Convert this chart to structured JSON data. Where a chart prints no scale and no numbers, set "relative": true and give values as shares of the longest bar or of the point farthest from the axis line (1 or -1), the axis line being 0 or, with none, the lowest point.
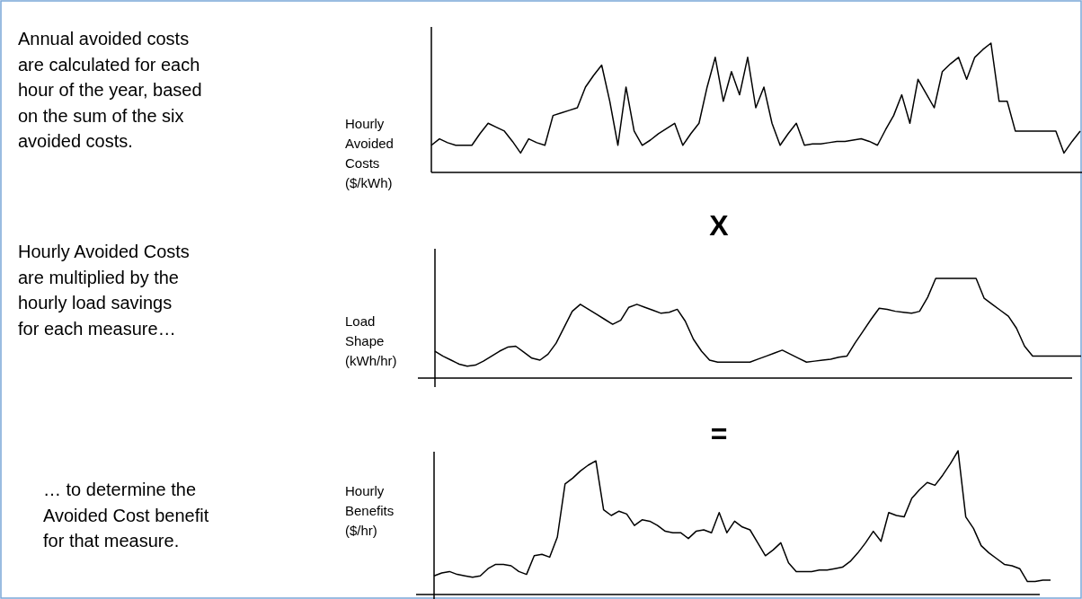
{
  "chart_data": [
    {
      "type": "other",
      "annotations": [
        "Annual avoided costs\nare calculated for each\nhour of the year, based\non the sum of the six\navoided costs.",
        "X",
        "Hourly Avoided Costs\nare multiplied by the\nhourly load savings\nfor each measure…",
        "=",
        "… to determine the\nAvoided Cost benefit\nfor that measure."
      ]
    },
    {
      "type": "line",
      "relative": true,
      "ylabel": "Hourly\nAvoided\nCosts\n($/kWh)",
      "color": "#000000",
      "categories": [
        null,
        null,
        null,
        null,
        null,
        null,
        null,
        null,
        null,
        null,
        null,
        null,
        null,
        null,
        null,
        null,
        null,
        null,
        null,
        null,
        null,
        null,
        null,
        null,
        null,
        null,
        null,
        null,
        null,
        null,
        null,
        null,
        null,
        null,
        null,
        null,
        null,
        null,
        null,
        null,
        null,
        null,
        null,
        null,
        null,
        null,
        null,
        null,
        null,
        null,
        null,
        null,
        null,
        null,
        null,
        null,
        null,
        null,
        null,
        null,
        null,
        null,
        null,
        null,
        null,
        null,
        null,
        null,
        null,
        null,
        null,
        null,
        null,
        null,
        null,
        null,
        null,
        null,
        null,
        null,
        null
      ],
      "values": [
        0.21,
        0.26,
        0.23,
        0.21,
        0.21,
        0.21,
        0.3,
        0.38,
        0.35,
        0.32,
        0.24,
        0.15,
        0.26,
        0.23,
        0.21,
        0.44,
        0.46,
        0.48,
        0.5,
        0.66,
        0.75,
        0.83,
        0.55,
        0.21,
        0.66,
        0.32,
        0.21,
        0.25,
        0.3,
        0.34,
        0.38,
        0.21,
        0.3,
        0.38,
        0.66,
        0.89,
        0.55,
        0.78,
        0.6,
        0.89,
        0.5,
        0.66,
        0.38,
        0.21,
        0.3,
        0.38,
        0.21,
        0.22,
        0.22,
        0.23,
        0.24,
        0.24,
        0.25,
        0.26,
        0.24,
        0.21,
        0.33,
        0.44,
        0.6,
        0.38,
        0.72,
        0.61,
        0.5,
        0.78,
        0.84,
        0.89,
        0.72,
        0.89,
        0.95,
        1,
        0.55,
        0.55,
        0.32,
        0.32,
        0.32,
        0.32,
        0.32,
        0.32,
        0.15,
        0.24,
        0.32
      ]
    },
    {
      "type": "line",
      "relative": true,
      "ylabel": "Load\nShape\n(kWh/hr)",
      "color": "#000000",
      "categories": [
        null,
        null,
        null,
        null,
        null,
        null,
        null,
        null,
        null,
        null,
        null,
        null,
        null,
        null,
        null,
        null,
        null,
        null,
        null,
        null,
        null,
        null,
        null,
        null,
        null,
        null,
        null,
        null,
        null,
        null,
        null,
        null,
        null,
        null,
        null,
        null,
        null,
        null,
        null,
        null,
        null,
        null,
        null,
        null,
        null,
        null,
        null,
        null,
        null,
        null,
        null,
        null,
        null,
        null,
        null,
        null,
        null,
        null,
        null,
        null,
        null,
        null,
        null,
        null,
        null,
        null,
        null,
        null,
        null,
        null,
        null,
        null,
        null,
        null,
        null,
        null,
        null,
        null,
        null,
        null,
        null
      ],
      "values": [
        0.27,
        0.22,
        0.18,
        0.14,
        0.12,
        0.13,
        0.17,
        0.22,
        0.27,
        0.31,
        0.32,
        0.26,
        0.2,
        0.18,
        0.24,
        0.35,
        0.51,
        0.67,
        0.74,
        0.69,
        0.64,
        0.59,
        0.54,
        0.58,
        0.71,
        0.74,
        0.71,
        0.68,
        0.65,
        0.66,
        0.69,
        0.57,
        0.39,
        0.27,
        0.18,
        0.16,
        0.16,
        0.16,
        0.16,
        0.16,
        0.19,
        0.22,
        0.25,
        0.28,
        0.24,
        0.2,
        0.16,
        0.17,
        0.18,
        0.19,
        0.21,
        0.22,
        0.35,
        0.47,
        0.59,
        0.7,
        0.69,
        0.67,
        0.66,
        0.65,
        0.67,
        0.81,
        1,
        1,
        1,
        1,
        1,
        1,
        0.8,
        0.74,
        0.68,
        0.62,
        0.5,
        0.32,
        0.22,
        0.22,
        0.22,
        0.22,
        0.22,
        0.22,
        0.22
      ]
    },
    {
      "type": "line",
      "relative": true,
      "ylabel": "Hourly\nBenefits\n($/hr)",
      "color": "#000000",
      "categories": [
        null,
        null,
        null,
        null,
        null,
        null,
        null,
        null,
        null,
        null,
        null,
        null,
        null,
        null,
        null,
        null,
        null,
        null,
        null,
        null,
        null,
        null,
        null,
        null,
        null,
        null,
        null,
        null,
        null,
        null,
        null,
        null,
        null,
        null,
        null,
        null,
        null,
        null,
        null,
        null,
        null,
        null,
        null,
        null,
        null,
        null,
        null,
        null,
        null,
        null,
        null,
        null,
        null,
        null,
        null,
        null,
        null,
        null,
        null,
        null,
        null,
        null,
        null,
        null,
        null,
        null,
        null,
        null,
        null,
        null,
        null,
        null,
        null,
        null,
        null,
        null,
        null,
        null,
        null,
        null,
        null
      ],
      "values": [
        0.13,
        0.15,
        0.16,
        0.14,
        0.13,
        0.12,
        0.13,
        0.18,
        0.21,
        0.21,
        0.2,
        0.16,
        0.14,
        0.27,
        0.28,
        0.26,
        0.4,
        0.77,
        0.81,
        0.86,
        0.9,
        0.93,
        0.59,
        0.55,
        0.58,
        0.56,
        0.48,
        0.52,
        0.51,
        0.48,
        0.44,
        0.43,
        0.43,
        0.39,
        0.44,
        0.45,
        0.43,
        0.57,
        0.43,
        0.51,
        0.47,
        0.45,
        0.36,
        0.27,
        0.31,
        0.36,
        0.22,
        0.16,
        0.16,
        0.16,
        0.17,
        0.17,
        0.18,
        0.19,
        0.23,
        0.29,
        0.36,
        0.44,
        0.37,
        0.57,
        0.55,
        0.54,
        0.67,
        0.73,
        0.78,
        0.76,
        0.83,
        0.91,
        1,
        0.54,
        0.46,
        0.34,
        0.29,
        0.25,
        0.21,
        0.2,
        0.18,
        0.09,
        0.09,
        0.1,
        0.1
      ]
    }
  ]
}
